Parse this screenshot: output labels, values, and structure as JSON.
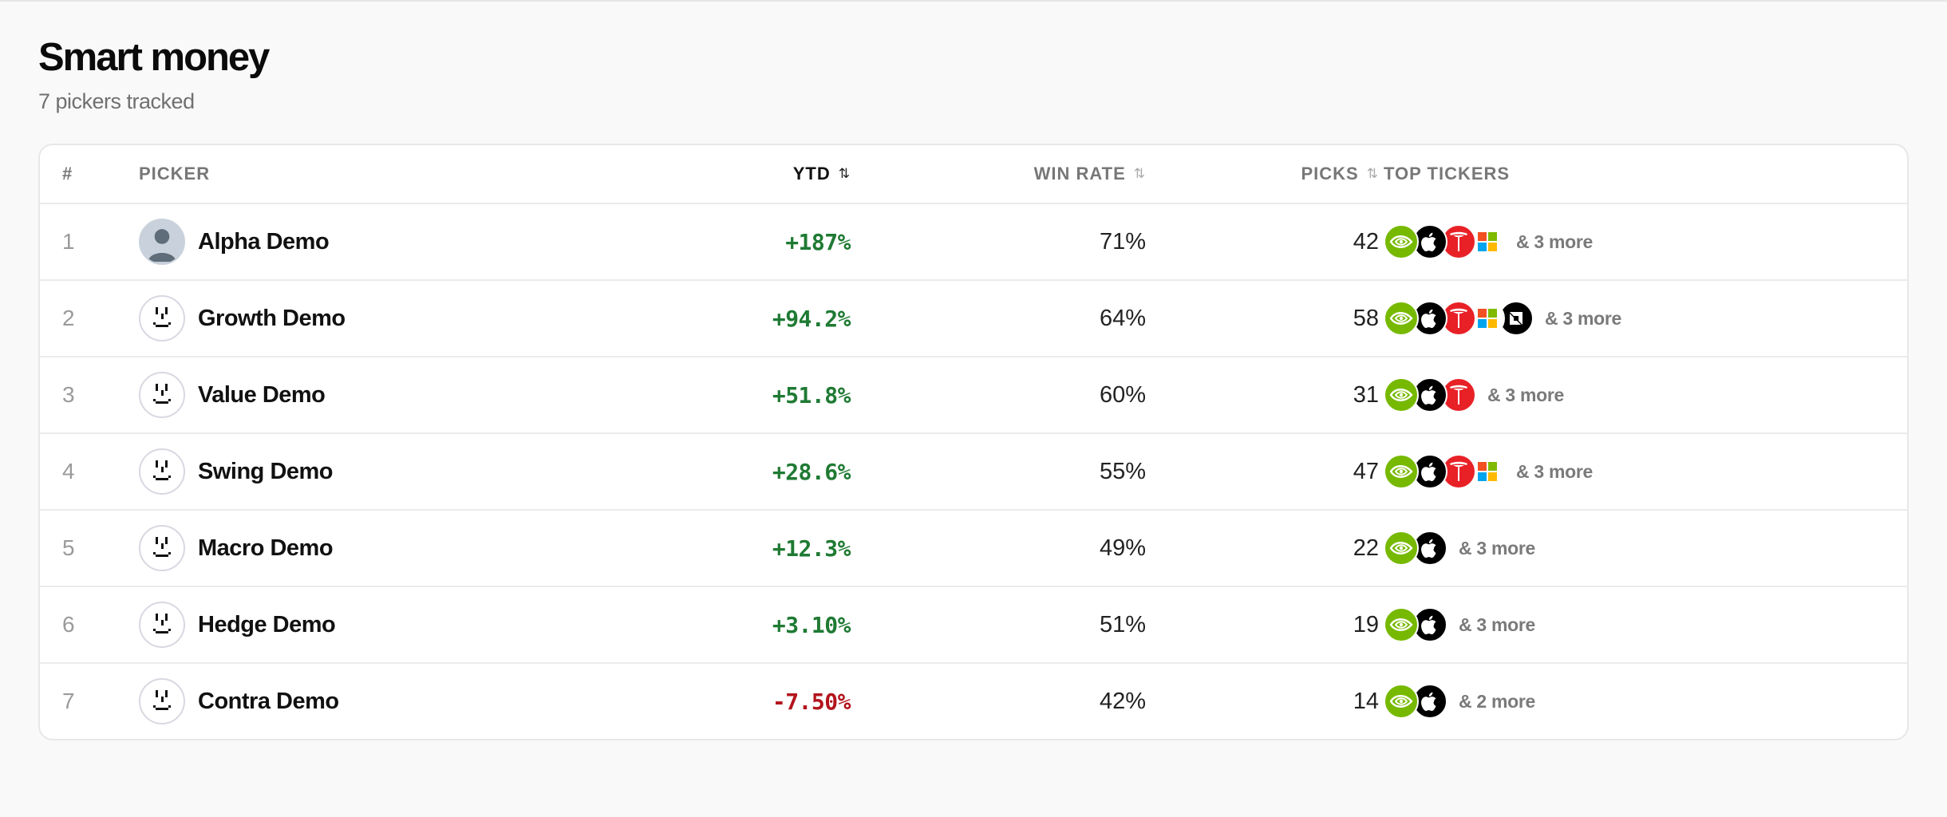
{
  "header": {
    "title": "Smart money",
    "subtitle": "7 pickers tracked"
  },
  "table": {
    "columns": {
      "rank": "#",
      "picker": "PICKER",
      "ytd": "YTD",
      "win_rate": "WIN RATE",
      "picks": "PICKS",
      "top_tickers": "TOP TICKERS"
    },
    "sort_icon": "⇅",
    "active_sort": "ytd",
    "rows": [
      {
        "rank": "1",
        "name": "Alpha Demo",
        "avatar": "person-photo",
        "ytd": "+187%",
        "ytd_sign": "pos",
        "win_rate": "71%",
        "picks": "42",
        "tickers": [
          "nvidia-logo-icon",
          "apple-logo-icon",
          "tesla-logo-icon",
          "microsoft-logo-icon"
        ],
        "more": "& 3 more"
      },
      {
        "rank": "2",
        "name": "Growth Demo",
        "avatar": "face",
        "ytd": "+94.2%",
        "ytd_sign": "pos",
        "win_rate": "64%",
        "picks": "58",
        "tickers": [
          "nvidia-logo-icon",
          "apple-logo-icon",
          "tesla-logo-icon",
          "microsoft-logo-icon",
          "amd-logo-icon"
        ],
        "more": "& 3 more"
      },
      {
        "rank": "3",
        "name": "Value Demo",
        "avatar": "face",
        "ytd": "+51.8%",
        "ytd_sign": "pos",
        "win_rate": "60%",
        "picks": "31",
        "tickers": [
          "nvidia-logo-icon",
          "apple-logo-icon",
          "tesla-logo-icon"
        ],
        "more": "& 3 more"
      },
      {
        "rank": "4",
        "name": "Swing Demo",
        "avatar": "face",
        "ytd": "+28.6%",
        "ytd_sign": "pos",
        "win_rate": "55%",
        "picks": "47",
        "tickers": [
          "nvidia-logo-icon",
          "apple-logo-icon",
          "tesla-logo-icon",
          "microsoft-logo-icon"
        ],
        "more": "& 3 more"
      },
      {
        "rank": "5",
        "name": "Macro Demo",
        "avatar": "face",
        "ytd": "+12.3%",
        "ytd_sign": "pos",
        "win_rate": "49%",
        "picks": "22",
        "tickers": [
          "nvidia-logo-icon",
          "apple-logo-icon"
        ],
        "more": "& 3 more"
      },
      {
        "rank": "6",
        "name": "Hedge Demo",
        "avatar": "face",
        "ytd": "+3.10%",
        "ytd_sign": "pos",
        "win_rate": "51%",
        "picks": "19",
        "tickers": [
          "nvidia-logo-icon",
          "apple-logo-icon"
        ],
        "more": "& 3 more"
      },
      {
        "rank": "7",
        "name": "Contra Demo",
        "avatar": "face",
        "ytd": "-7.50%",
        "ytd_sign": "neg",
        "win_rate": "42%",
        "picks": "14",
        "tickers": [
          "nvidia-logo-icon",
          "apple-logo-icon"
        ],
        "more": "& 2 more"
      }
    ]
  },
  "colors": {
    "positive": "#1f7a33",
    "negative": "#b3141c",
    "nvidia": "#76b900",
    "tesla": "#e82127",
    "apple": "#000000"
  }
}
